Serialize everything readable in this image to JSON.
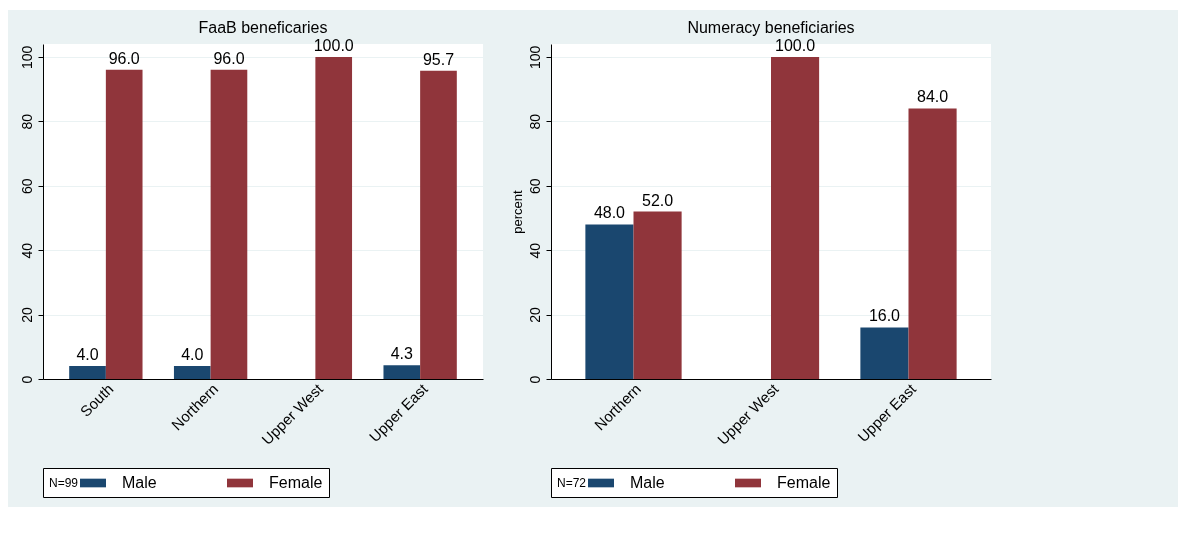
{
  "chart_data": [
    {
      "type": "bar",
      "title": "FaaB beneficaries",
      "categories": [
        "South",
        "Northern",
        "Upper West",
        "Upper East"
      ],
      "series": [
        {
          "name": "Male",
          "color": "#1a476f",
          "values": [
            4.0,
            4.0,
            null,
            4.3
          ],
          "value_labels": [
            "4.0",
            "4.0",
            null,
            "4.3"
          ]
        },
        {
          "name": "Female",
          "color": "#90353b",
          "values": [
            96.0,
            96.0,
            100.0,
            95.7
          ],
          "value_labels": [
            "96.0",
            "96.0",
            "100.0",
            "95.7"
          ]
        }
      ],
      "ylim": [
        0,
        104
      ],
      "yticks": [
        0,
        20,
        40,
        60,
        80,
        100
      ],
      "grid": "y",
      "legend": "bottom",
      "annotations": [
        "N=99"
      ]
    },
    {
      "type": "bar",
      "title": "Numeracy beneficiaries",
      "ylabel": "percent",
      "categories": [
        "Northern",
        "Upper West",
        "Upper East"
      ],
      "series": [
        {
          "name": "Male",
          "color": "#1a476f",
          "values": [
            48.0,
            null,
            16.0
          ],
          "value_labels": [
            "48.0",
            null,
            "16.0"
          ]
        },
        {
          "name": "Female",
          "color": "#90353b",
          "values": [
            52.0,
            100.0,
            84.0
          ],
          "value_labels": [
            "52.0",
            "100.0",
            "84.0"
          ]
        }
      ],
      "ylim": [
        0,
        104
      ],
      "yticks": [
        0,
        20,
        40,
        60,
        80,
        100
      ],
      "grid": "y",
      "legend": "bottom",
      "annotations": [
        "N=72"
      ]
    }
  ]
}
